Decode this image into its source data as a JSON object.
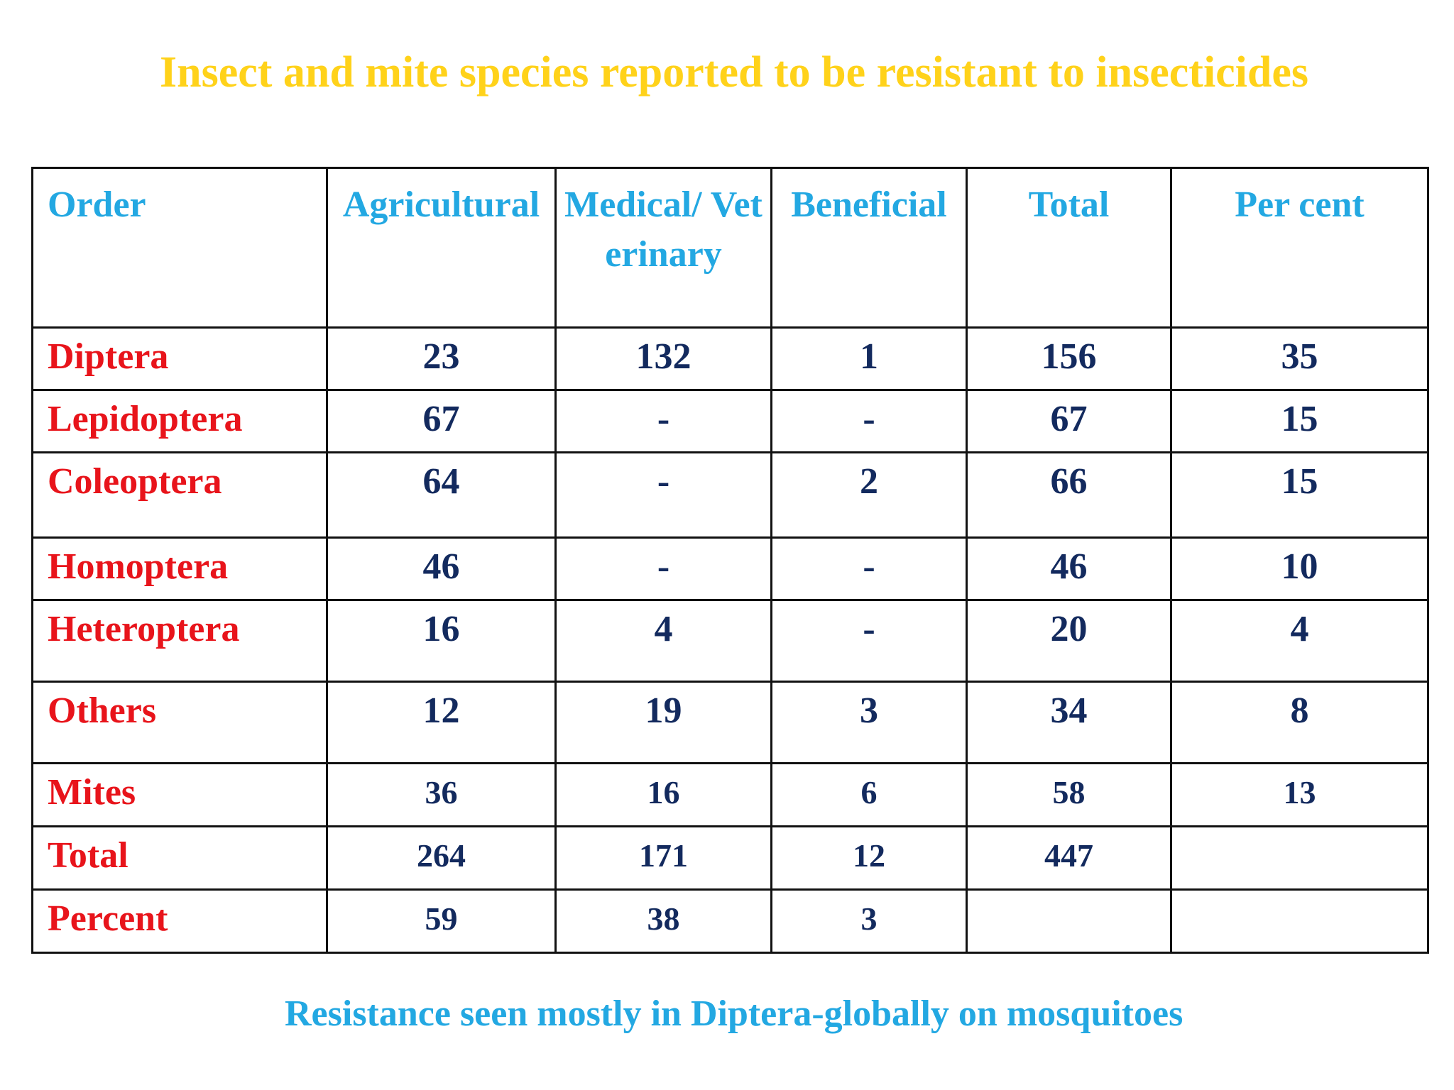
{
  "title": "Insect and mite species reported to be resistant to insecticides",
  "table": {
    "headers": {
      "order": "Order",
      "agricultural": "Agricultural",
      "medical": "Medical/ Veterinary",
      "beneficial": "Beneficial",
      "total": "Total",
      "percent": "Per cent"
    },
    "rows": [
      {
        "order": "Diptera",
        "agricultural": "23",
        "medical": "132",
        "beneficial": "1",
        "total": "156",
        "percent": "35"
      },
      {
        "order": "Lepidoptera",
        "agricultural": "67",
        "medical": "-",
        "beneficial": "-",
        "total": "67",
        "percent": "15"
      },
      {
        "order": "Coleoptera",
        "agricultural": "64",
        "medical": "-",
        "beneficial": "2",
        "total": "66",
        "percent": "15"
      },
      {
        "order": "Homoptera",
        "agricultural": "46",
        "medical": "-",
        "beneficial": "-",
        "total": "46",
        "percent": "10"
      },
      {
        "order": "Heteroptera",
        "agricultural": "16",
        "medical": "4",
        "beneficial": "-",
        "total": "20",
        "percent": "4"
      },
      {
        "order": "Others",
        "agricultural": "12",
        "medical": "19",
        "beneficial": "3",
        "total": "34",
        "percent": "8"
      },
      {
        "order": "Mites",
        "agricultural": "36",
        "medical": "16",
        "beneficial": "6",
        "total": "58",
        "percent": "13"
      },
      {
        "order": "Total",
        "agricultural": "264",
        "medical": "171",
        "beneficial": "12",
        "total": "447",
        "percent": ""
      },
      {
        "order": "Percent",
        "agricultural": "59",
        "medical": "38",
        "beneficial": "3",
        "total": "",
        "percent": ""
      }
    ]
  },
  "footer": "Resistance seen mostly in Diptera-globally on mosquitoes",
  "colors": {
    "title": "#ffd21a",
    "header": "#23a8e2",
    "order_labels": "#e8141b",
    "values": "#132a5e",
    "footer": "#23a8e2"
  }
}
